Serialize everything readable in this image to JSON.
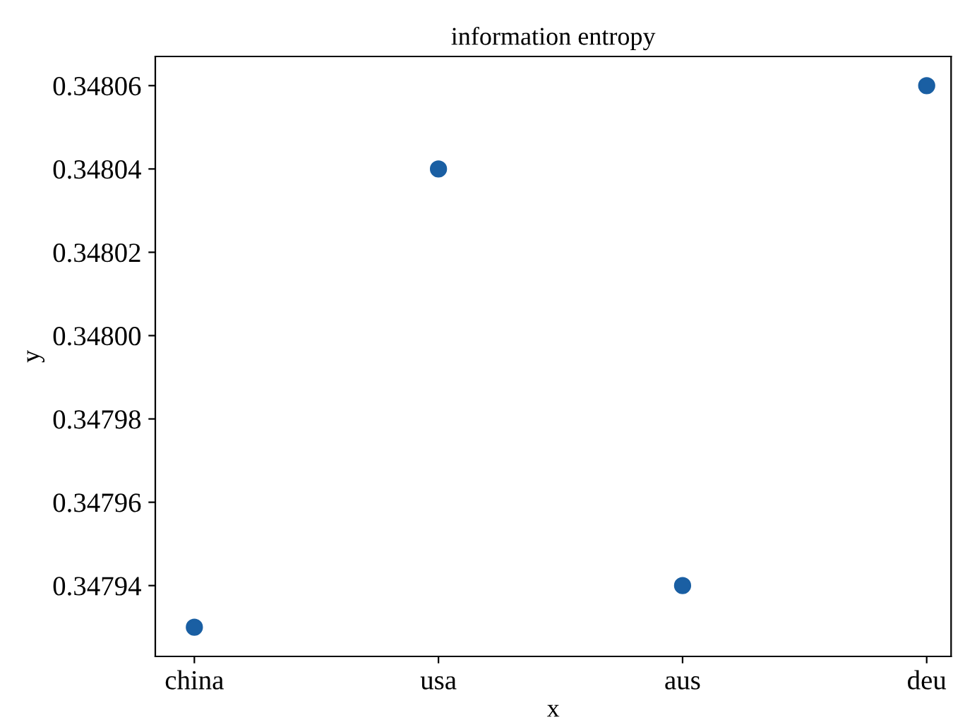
{
  "chart_data": {
    "type": "scatter",
    "title": "information entropy",
    "xlabel": "x",
    "ylabel": "y",
    "categories": [
      "china",
      "usa",
      "aus",
      "deu"
    ],
    "series": [
      {
        "color": "#1a5fa3",
        "values": [
          0.34793,
          0.34804,
          0.34794,
          0.34806
        ]
      }
    ],
    "ylim": [
      0.347923,
      0.348067
    ],
    "yticks": [
      0.34794,
      0.34796,
      0.34798,
      {
        "value": 0.348,
        "label": "0.34800"
      },
      0.34802,
      0.34804,
      0.34806
    ],
    "marker": "circle",
    "grid": false
  }
}
